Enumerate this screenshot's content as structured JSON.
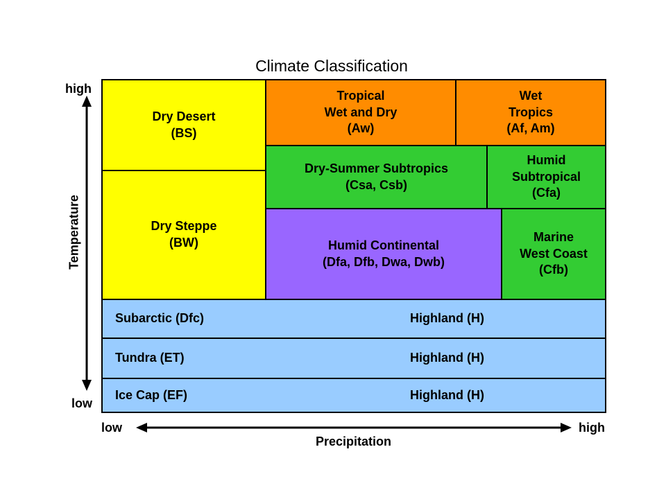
{
  "title": "Climate Classification",
  "axes": {
    "y_label": "Temperature",
    "y_high": "high",
    "y_low": "low",
    "x_label": "Precipitation",
    "x_low": "low",
    "x_high": "high"
  },
  "regions": {
    "dry_desert": "Dry Desert\n(BS)",
    "dry_steppe": "Dry Steppe\n(BW)",
    "tropical_wet_dry": "Tropical\nWet and Dry\n(Aw)",
    "wet_tropics": "Wet\nTropics\n(Af, Am)",
    "dry_summer_subtropics": "Dry-Summer Subtropics\n(Csa, Csb)",
    "humid_subtropical": "Humid\nSubtropical\n(Cfa)",
    "humid_continental": "Humid Continental\n(Dfa, Dfb, Dwa, Dwb)",
    "marine_west_coast": "Marine\nWest Coast\n(Cfb)"
  },
  "rows": [
    {
      "left": "Subarctic (Dfc)",
      "right": "Highland (H)"
    },
    {
      "left": "Tundra (ET)",
      "right": "Highland (H)"
    },
    {
      "left": "Ice Cap (EF)",
      "right": "Highland (H)"
    }
  ],
  "colors": {
    "dry": "#ffff00",
    "tropical": "#ff8c00",
    "subtropical": "#33cc33",
    "continental": "#9966ff",
    "polar": "#99ccff"
  }
}
